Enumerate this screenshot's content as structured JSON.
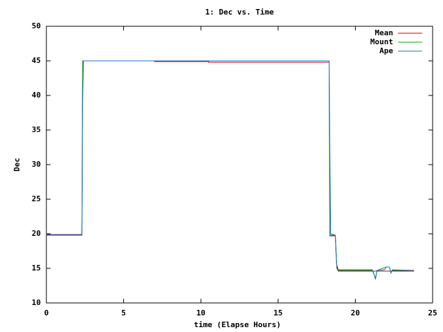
{
  "chart_data": {
    "type": "line",
    "title": "1: Dec vs. Time",
    "x_label": "time (Elapse Hours)",
    "y_label": "Dec",
    "xlim": [
      0,
      25
    ],
    "xticks": [
      0,
      5,
      10,
      15,
      20,
      25
    ],
    "ylim": [
      10,
      50
    ],
    "yticks": [
      10,
      15,
      20,
      25,
      30,
      35,
      40,
      45,
      50
    ],
    "legend": "top-right",
    "series": [
      {
        "name": "Mean",
        "color": "#cc0000",
        "x": [
          0,
          2.3,
          2.35,
          7.0,
          7.0,
          10.5,
          10.5,
          18.3,
          18.35,
          18.7,
          18.8,
          18.9,
          23.8
        ],
        "values": [
          19.8,
          19.8,
          45,
          45,
          44.9,
          44.9,
          44.8,
          44.8,
          19.7,
          19.7,
          15,
          14.6,
          14.6
        ]
      },
      {
        "name": "Mount",
        "color": "#00aa00",
        "x": [
          0,
          2.3,
          2.35,
          18.3,
          18.35,
          18.7,
          18.8,
          18.9,
          21.1,
          21.3,
          21.4,
          22.0,
          22.2,
          22.3,
          22.4,
          23.8
        ],
        "values": [
          19.9,
          19.9,
          45,
          45,
          19.8,
          19.8,
          15.3,
          14.7,
          14.7,
          13.6,
          14.7,
          15.2,
          15.2,
          14.4,
          14.7,
          14.7
        ]
      },
      {
        "name": "Ape",
        "color": "#1a6fd6",
        "x": [
          0,
          0.05,
          2.3,
          2.32,
          2.35,
          2.4,
          18.3,
          18.35,
          18.4,
          18.7,
          18.75,
          18.8,
          18.9,
          21.1,
          21.2,
          21.3,
          21.4,
          21.9,
          22.0,
          22.2,
          22.3,
          22.4,
          23.8
        ],
        "values": [
          20,
          19.9,
          19.9,
          26,
          39,
          45,
          45,
          32,
          20,
          19.8,
          17,
          15.5,
          14.8,
          14.8,
          14.2,
          13.4,
          14.7,
          14.8,
          15.2,
          15.2,
          14.3,
          14.8,
          14.7
        ]
      }
    ]
  }
}
